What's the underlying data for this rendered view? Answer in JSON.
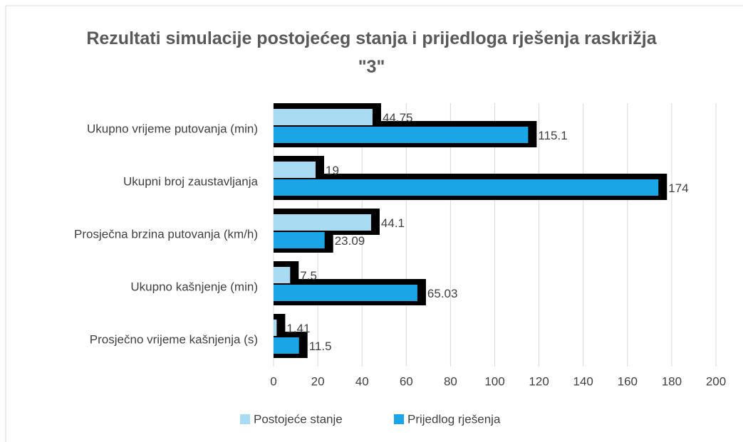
{
  "chart_data": {
    "type": "hbar",
    "title": "Rezultati simulacije postojećeg stanja i prijedloga rješenja raskrižja \"3\"",
    "categories": [
      "Ukupno vrijeme putovanja (min)",
      "Ukupni broj zaustavljanja",
      "Prosječna brzina putovanja (km/h)",
      "Ukupno kašnjenje (min)",
      "Prosječno vrijeme kašnjenja (s)"
    ],
    "series": [
      {
        "name": "Postojeće stanje",
        "color": "#a9dcf2",
        "values": [
          44.75,
          19,
          44.1,
          7.5,
          1.41
        ]
      },
      {
        "name": "Prijedlog rješenja",
        "color": "#19a5e6",
        "values": [
          115.1,
          174,
          23.09,
          65.03,
          11.5
        ]
      }
    ],
    "xlim": [
      0,
      200
    ],
    "xticks": [
      0,
      20,
      40,
      60,
      80,
      100,
      120,
      140,
      160,
      180,
      200
    ],
    "grid": true,
    "legend": "bottom"
  }
}
